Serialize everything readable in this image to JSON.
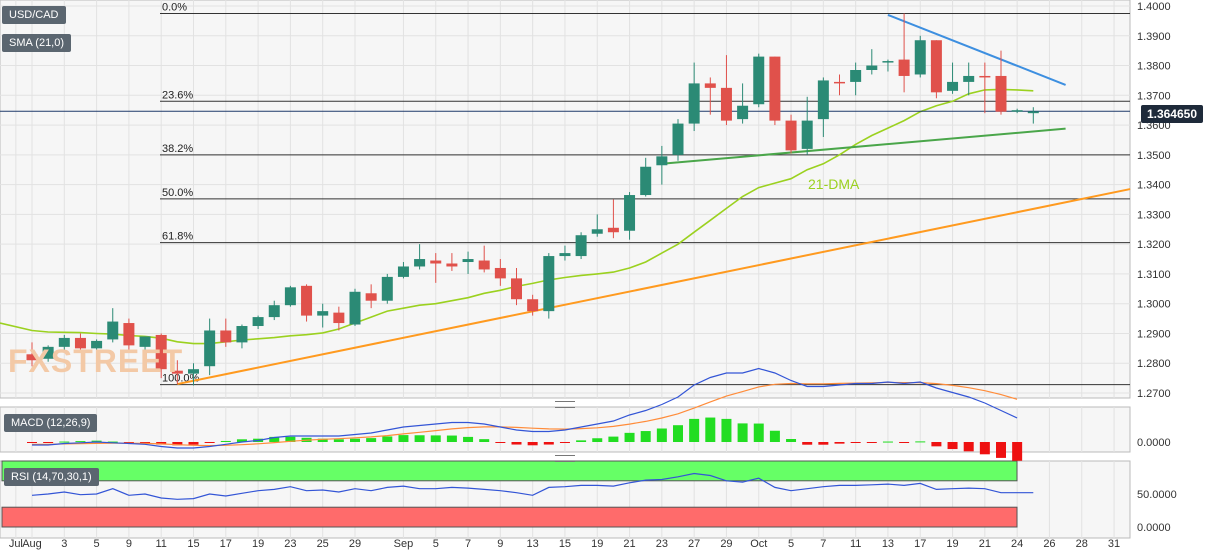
{
  "labels": {
    "symbol": "USD/CAD",
    "sma": "SMA (21,0)",
    "macd": "MACD (12,26,9)",
    "rsi": "RSI (14,70,30,1)",
    "dma_annotation": "21-DMA",
    "watermark": "FXSTREET",
    "last_price": "1.364650"
  },
  "colors": {
    "bull": "#2b8a75",
    "bear": "#e0514b",
    "sma": "#9bd11f",
    "support_green": "#4aa64a",
    "support_orange": "#ff9a1f",
    "resistance_blue": "#3d8fe0",
    "macd_line": "#3355d6",
    "signal_line": "#ff8c3a",
    "rsi_line": "#3355d6",
    "rsi_overbought": "#66ff66",
    "rsi_oversold": "#ff6b6b",
    "hist_pos": "#22dd22",
    "hist_neg": "#ee1111"
  },
  "chart_data": [
    {
      "type": "candlestick",
      "title": "USD/CAD",
      "ylim": [
        1.2665,
        1.4015
      ],
      "y_ticks": [
        "1.4000",
        "1.3900",
        "1.3800",
        "1.3700",
        "1.3600",
        "1.3500",
        "1.3400",
        "1.3300",
        "1.3200",
        "1.3100",
        "1.3000",
        "1.2900",
        "1.2800",
        "1.2700"
      ],
      "y_tick_values": [
        1.4,
        1.39,
        1.38,
        1.37,
        1.36,
        1.35,
        1.34,
        1.33,
        1.32,
        1.31,
        1.3,
        1.29,
        1.28,
        1.27
      ],
      "x_ticks": [
        {
          "label": "Jul",
          "i": -1
        },
        {
          "label": "Aug",
          "i": 0
        },
        {
          "label": "3",
          "i": 2
        },
        {
          "label": "5",
          "i": 4
        },
        {
          "label": "9",
          "i": 6
        },
        {
          "label": "11",
          "i": 8
        },
        {
          "label": "15",
          "i": 10
        },
        {
          "label": "17",
          "i": 12
        },
        {
          "label": "19",
          "i": 14
        },
        {
          "label": "23",
          "i": 16
        },
        {
          "label": "25",
          "i": 18
        },
        {
          "label": "29",
          "i": 20
        },
        {
          "label": "Sep",
          "i": 23
        },
        {
          "label": "5",
          "i": 25
        },
        {
          "label": "7",
          "i": 27
        },
        {
          "label": "9",
          "i": 29
        },
        {
          "label": "13",
          "i": 31
        },
        {
          "label": "15",
          "i": 33
        },
        {
          "label": "19",
          "i": 35
        },
        {
          "label": "21",
          "i": 37
        },
        {
          "label": "23",
          "i": 39
        },
        {
          "label": "27",
          "i": 41
        },
        {
          "label": "29",
          "i": 43
        },
        {
          "label": "Oct",
          "i": 45
        },
        {
          "label": "5",
          "i": 47
        },
        {
          "label": "7",
          "i": 49
        },
        {
          "label": "11",
          "i": 51
        },
        {
          "label": "13",
          "i": 53
        },
        {
          "label": "17",
          "i": 55
        },
        {
          "label": "19",
          "i": 57
        },
        {
          "label": "21",
          "i": 59
        },
        {
          "label": "24",
          "i": 61
        },
        {
          "label": "26",
          "i": 63
        },
        {
          "label": "28",
          "i": 65
        },
        {
          "label": "31",
          "i": 67
        }
      ],
      "candles": [
        {
          "o": 1.283,
          "h": 1.287,
          "l": 1.279,
          "c": 1.281
        },
        {
          "o": 1.2815,
          "h": 1.286,
          "l": 1.2805,
          "c": 1.2855
        },
        {
          "o": 1.2855,
          "h": 1.2895,
          "l": 1.2845,
          "c": 1.2885
        },
        {
          "o": 1.2885,
          "h": 1.29,
          "l": 1.2845,
          "c": 1.285
        },
        {
          "o": 1.285,
          "h": 1.288,
          "l": 1.284,
          "c": 1.2875
        },
        {
          "o": 1.288,
          "h": 1.2985,
          "l": 1.287,
          "c": 1.294
        },
        {
          "o": 1.2935,
          "h": 1.295,
          "l": 1.284,
          "c": 1.286
        },
        {
          "o": 1.2855,
          "h": 1.289,
          "l": 1.2835,
          "c": 1.289
        },
        {
          "o": 1.2895,
          "h": 1.29,
          "l": 1.275,
          "c": 1.278
        },
        {
          "o": 1.2775,
          "h": 1.281,
          "l": 1.273,
          "c": 1.2765
        },
        {
          "o": 1.2765,
          "h": 1.28,
          "l": 1.2725,
          "c": 1.278
        },
        {
          "o": 1.279,
          "h": 1.295,
          "l": 1.276,
          "c": 1.291
        },
        {
          "o": 1.291,
          "h": 1.295,
          "l": 1.2855,
          "c": 1.287
        },
        {
          "o": 1.287,
          "h": 1.293,
          "l": 1.285,
          "c": 1.2925
        },
        {
          "o": 1.2925,
          "h": 1.296,
          "l": 1.2915,
          "c": 1.2955
        },
        {
          "o": 1.2955,
          "h": 1.301,
          "l": 1.2945,
          "c": 1.2995
        },
        {
          "o": 1.2995,
          "h": 1.306,
          "l": 1.299,
          "c": 1.3055
        },
        {
          "o": 1.306,
          "h": 1.3065,
          "l": 1.294,
          "c": 1.296
        },
        {
          "o": 1.296,
          "h": 1.3,
          "l": 1.292,
          "c": 1.2975
        },
        {
          "o": 1.297,
          "h": 1.299,
          "l": 1.291,
          "c": 1.2935
        },
        {
          "o": 1.293,
          "h": 1.305,
          "l": 1.2925,
          "c": 1.304
        },
        {
          "o": 1.3035,
          "h": 1.3065,
          "l": 1.2985,
          "c": 1.301
        },
        {
          "o": 1.301,
          "h": 1.31,
          "l": 1.3,
          "c": 1.309
        },
        {
          "o": 1.309,
          "h": 1.314,
          "l": 1.3085,
          "c": 1.3125
        },
        {
          "o": 1.3125,
          "h": 1.32,
          "l": 1.3115,
          "c": 1.315
        },
        {
          "o": 1.3145,
          "h": 1.317,
          "l": 1.307,
          "c": 1.3135
        },
        {
          "o": 1.3135,
          "h": 1.317,
          "l": 1.311,
          "c": 1.3125
        },
        {
          "o": 1.314,
          "h": 1.3175,
          "l": 1.31,
          "c": 1.315
        },
        {
          "o": 1.3145,
          "h": 1.3195,
          "l": 1.3105,
          "c": 1.3115
        },
        {
          "o": 1.312,
          "h": 1.315,
          "l": 1.306,
          "c": 1.3085
        },
        {
          "o": 1.3085,
          "h": 1.312,
          "l": 1.2995,
          "c": 1.3015
        },
        {
          "o": 1.3015,
          "h": 1.303,
          "l": 1.296,
          "c": 1.2975
        },
        {
          "o": 1.2975,
          "h": 1.317,
          "l": 1.295,
          "c": 1.316
        },
        {
          "o": 1.316,
          "h": 1.3195,
          "l": 1.3145,
          "c": 1.317
        },
        {
          "o": 1.316,
          "h": 1.324,
          "l": 1.315,
          "c": 1.323
        },
        {
          "o": 1.3235,
          "h": 1.33,
          "l": 1.3225,
          "c": 1.325
        },
        {
          "o": 1.3255,
          "h": 1.335,
          "l": 1.322,
          "c": 1.324
        },
        {
          "o": 1.3245,
          "h": 1.3375,
          "l": 1.3215,
          "c": 1.3365
        },
        {
          "o": 1.3365,
          "h": 1.349,
          "l": 1.336,
          "c": 1.346
        },
        {
          "o": 1.3465,
          "h": 1.353,
          "l": 1.34,
          "c": 1.3495
        },
        {
          "o": 1.35,
          "h": 1.362,
          "l": 1.348,
          "c": 1.3605
        },
        {
          "o": 1.3605,
          "h": 1.381,
          "l": 1.358,
          "c": 1.374
        },
        {
          "o": 1.374,
          "h": 1.376,
          "l": 1.3635,
          "c": 1.3725
        },
        {
          "o": 1.3725,
          "h": 1.3835,
          "l": 1.36,
          "c": 1.3615
        },
        {
          "o": 1.362,
          "h": 1.374,
          "l": 1.3605,
          "c": 1.3665
        },
        {
          "o": 1.367,
          "h": 1.384,
          "l": 1.366,
          "c": 1.383
        },
        {
          "o": 1.383,
          "h": 1.383,
          "l": 1.36,
          "c": 1.3615
        },
        {
          "o": 1.3615,
          "h": 1.3635,
          "l": 1.3505,
          "c": 1.3515
        },
        {
          "o": 1.352,
          "h": 1.3695,
          "l": 1.35,
          "c": 1.3615
        },
        {
          "o": 1.362,
          "h": 1.376,
          "l": 1.356,
          "c": 1.375
        },
        {
          "o": 1.3745,
          "h": 1.377,
          "l": 1.37,
          "c": 1.374
        },
        {
          "o": 1.3745,
          "h": 1.381,
          "l": 1.37,
          "c": 1.3785
        },
        {
          "o": 1.3785,
          "h": 1.3855,
          "l": 1.377,
          "c": 1.38
        },
        {
          "o": 1.381,
          "h": 1.382,
          "l": 1.378,
          "c": 1.3815
        },
        {
          "o": 1.382,
          "h": 1.3975,
          "l": 1.371,
          "c": 1.3765
        },
        {
          "o": 1.377,
          "h": 1.39,
          "l": 1.376,
          "c": 1.3885
        },
        {
          "o": 1.3885,
          "h": 1.3885,
          "l": 1.369,
          "c": 1.371
        },
        {
          "o": 1.3715,
          "h": 1.381,
          "l": 1.3705,
          "c": 1.3745
        },
        {
          "o": 1.3745,
          "h": 1.381,
          "l": 1.37,
          "c": 1.3765
        },
        {
          "o": 1.3765,
          "h": 1.381,
          "l": 1.364,
          "c": 1.376
        },
        {
          "o": 1.3765,
          "h": 1.385,
          "l": 1.3635,
          "c": 1.3645
        },
        {
          "o": 1.3645,
          "h": 1.3655,
          "l": 1.364,
          "c": 1.365
        },
        {
          "o": 1.364,
          "h": 1.366,
          "l": 1.3605,
          "c": 1.3646
        }
      ],
      "sma_21": [
        1.291,
        1.2905,
        1.2904,
        1.2903,
        1.29,
        1.2898,
        1.2893,
        1.289,
        1.2884,
        1.2872,
        1.2866,
        1.2866,
        1.2872,
        1.2878,
        1.2882,
        1.2886,
        1.2892,
        1.2896,
        1.2902,
        1.2915,
        1.2935,
        1.2955,
        1.2975,
        1.2985,
        1.2995,
        1.3,
        1.301,
        1.302,
        1.3035,
        1.3045,
        1.3058,
        1.3068,
        1.308,
        1.3088,
        1.3095,
        1.31,
        1.3106,
        1.312,
        1.314,
        1.317,
        1.32,
        1.324,
        1.328,
        1.332,
        1.336,
        1.339,
        1.3405,
        1.342,
        1.345,
        1.347,
        1.35,
        1.3535,
        1.3565,
        1.359,
        1.3615,
        1.3645,
        1.3665,
        1.368,
        1.3705,
        1.3718,
        1.372,
        1.3718,
        1.3715
      ],
      "fibonacci": [
        {
          "label": "0.0%",
          "value": 1.3975
        },
        {
          "label": "23.6%",
          "value": 1.368
        },
        {
          "label": "38.2%",
          "value": 1.35
        },
        {
          "label": "50.0%",
          "value": 1.3352
        },
        {
          "label": "61.8%",
          "value": 1.3205
        },
        {
          "label": "100.0%",
          "value": 1.2728
        }
      ],
      "trendlines": [
        {
          "name": "resistance",
          "color": "resistance_blue",
          "from": {
            "i": 53,
            "v": 1.397
          },
          "to": {
            "i": 64,
            "v": 1.3735
          }
        },
        {
          "name": "support-green",
          "color": "support_green",
          "from": {
            "i": 39,
            "v": 1.347
          },
          "to": {
            "i": 64,
            "v": 1.3588
          }
        },
        {
          "name": "support-orange",
          "color": "support_orange",
          "from": {
            "i": 9,
            "v": 1.273
          },
          "to": {
            "i": 68,
            "v": 1.3385
          }
        }
      ],
      "current_price": 1.36465
    },
    {
      "type": "macd",
      "title": "MACD (12,26,9)",
      "y_ticks": [
        "0.0000"
      ],
      "ylim": [
        -0.01,
        0.06
      ],
      "macd": [
        -0.002,
        -0.002,
        -0.001,
        -0.0005,
        0.0,
        -0.0005,
        -0.001,
        -0.0015,
        -0.003,
        -0.004,
        -0.004,
        -0.003,
        -0.0015,
        0.0,
        0.001,
        0.003,
        0.004,
        0.004,
        0.004,
        0.004,
        0.005,
        0.006,
        0.008,
        0.01,
        0.011,
        0.012,
        0.013,
        0.013,
        0.012,
        0.01,
        0.008,
        0.007,
        0.007,
        0.008,
        0.01,
        0.012,
        0.014,
        0.018,
        0.021,
        0.025,
        0.03,
        0.038,
        0.043,
        0.046,
        0.046,
        0.049,
        0.046,
        0.041,
        0.037,
        0.037,
        0.038,
        0.039,
        0.039,
        0.04,
        0.039,
        0.04,
        0.036,
        0.033,
        0.03,
        0.026,
        0.021,
        0.016
      ],
      "signal": [
        -0.0015,
        -0.0015,
        -0.0013,
        -0.0011,
        -0.0009,
        -0.0008,
        -0.0008,
        -0.0009,
        -0.0013,
        -0.0018,
        -0.0022,
        -0.0024,
        -0.0022,
        -0.0018,
        -0.0012,
        -0.0004,
        0.0005,
        0.0012,
        0.0018,
        0.0022,
        0.0028,
        0.0034,
        0.0043,
        0.0054,
        0.0065,
        0.0076,
        0.0087,
        0.0096,
        0.0101,
        0.0101,
        0.0097,
        0.0092,
        0.0087,
        0.0086,
        0.0089,
        0.0095,
        0.0104,
        0.0119,
        0.0137,
        0.016,
        0.0188,
        0.0226,
        0.0267,
        0.0306,
        0.0336,
        0.0367,
        0.0385,
        0.039,
        0.0388,
        0.0388,
        0.0391,
        0.0393,
        0.0395,
        0.0397,
        0.0396,
        0.0396,
        0.0389,
        0.0377,
        0.0362,
        0.0342,
        0.0316,
        0.0285
      ],
      "histogram": [
        -0.0005,
        -0.0005,
        0.0003,
        0.0006,
        0.0009,
        0.0003,
        -0.0002,
        -0.0006,
        -0.0017,
        -0.0022,
        -0.0018,
        -0.0006,
        0.0007,
        0.0018,
        0.0022,
        0.0034,
        0.0035,
        0.0028,
        0.0022,
        0.0018,
        0.0022,
        0.0026,
        0.0037,
        0.0046,
        0.0045,
        0.0044,
        0.0043,
        0.0034,
        0.0019,
        -0.0001,
        -0.0017,
        -0.0022,
        -0.0017,
        -0.0006,
        0.0011,
        0.0025,
        0.0036,
        0.0061,
        0.0073,
        0.009,
        0.0112,
        0.0154,
        0.0163,
        0.0154,
        0.0124,
        0.0123,
        0.0075,
        0.002,
        -0.0018,
        -0.0018,
        -0.0011,
        -0.0003,
        -0.0005,
        0.0003,
        -0.0006,
        0.0004,
        -0.0029,
        -0.0047,
        -0.0062,
        -0.0082,
        -0.0106,
        -0.0125
      ]
    },
    {
      "type": "rsi",
      "title": "RSI (14,70,30,1)",
      "y_ticks": [
        "50.0000",
        "0.0000"
      ],
      "ylim": [
        0,
        100
      ],
      "overbought": 70,
      "oversold": 30,
      "values": [
        48,
        50,
        53,
        49,
        50,
        58,
        48,
        50,
        44,
        42,
        43,
        50,
        47,
        51,
        55,
        57,
        61,
        55,
        56,
        53,
        58,
        55,
        60,
        62,
        58,
        58,
        60,
        59,
        57,
        55,
        52,
        48,
        60,
        61,
        63,
        63,
        62,
        67,
        71,
        72,
        76,
        81,
        78,
        70,
        68,
        74,
        60,
        55,
        58,
        61,
        63,
        63,
        64,
        65,
        63,
        66,
        57,
        58,
        59,
        58,
        52,
        52,
        52
      ]
    }
  ]
}
